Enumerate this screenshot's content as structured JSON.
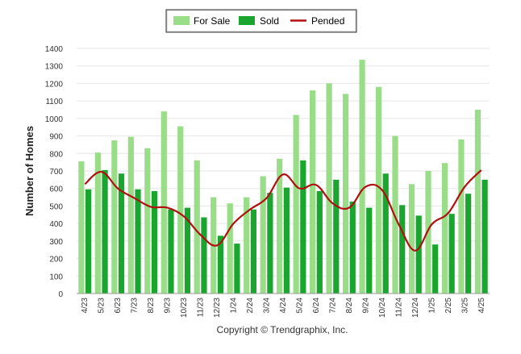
{
  "chart_data": {
    "type": "bar",
    "title": "",
    "xlabel": "",
    "ylabel": "Number of Homes",
    "ylim": [
      0,
      1400
    ],
    "yticks": [
      0,
      100,
      200,
      300,
      400,
      500,
      600,
      700,
      800,
      900,
      1000,
      1100,
      1200,
      1300,
      1400
    ],
    "grid": "horizontal",
    "legend_position": "top-center",
    "categories": [
      "4/23",
      "5/23",
      "6/23",
      "7/23",
      "8/23",
      "9/23",
      "10/23",
      "11/23",
      "12/23",
      "1/24",
      "2/24",
      "3/24",
      "4/24",
      "5/24",
      "6/24",
      "7/24",
      "8/24",
      "9/24",
      "10/24",
      "11/24",
      "12/24",
      "1/25",
      "2/25",
      "3/25",
      "4/25"
    ],
    "series": [
      {
        "name": "For Sale",
        "type": "bar",
        "color": "#99DD88",
        "values": [
          755,
          805,
          875,
          895,
          830,
          1040,
          955,
          760,
          550,
          515,
          550,
          670,
          770,
          1020,
          1160,
          1200,
          1140,
          1335,
          1180,
          900,
          625,
          700,
          745,
          880,
          1050
        ]
      },
      {
        "name": "Sold",
        "type": "bar",
        "color": "#1AA52E",
        "values": [
          595,
          705,
          685,
          595,
          585,
          480,
          490,
          435,
          330,
          285,
          480,
          575,
          605,
          760,
          585,
          650,
          525,
          490,
          685,
          505,
          445,
          280,
          455,
          570,
          650
        ]
      },
      {
        "name": "Pended",
        "type": "line",
        "color": "#B01010",
        "values": [
          625,
          695,
          600,
          545,
          495,
          490,
          440,
          335,
          275,
          400,
          480,
          545,
          680,
          600,
          620,
          515,
          490,
          610,
          590,
          395,
          245,
          395,
          460,
          610,
          705
        ]
      }
    ]
  },
  "footer": {
    "copyright": "Copyright © Trendgraphix, Inc."
  }
}
